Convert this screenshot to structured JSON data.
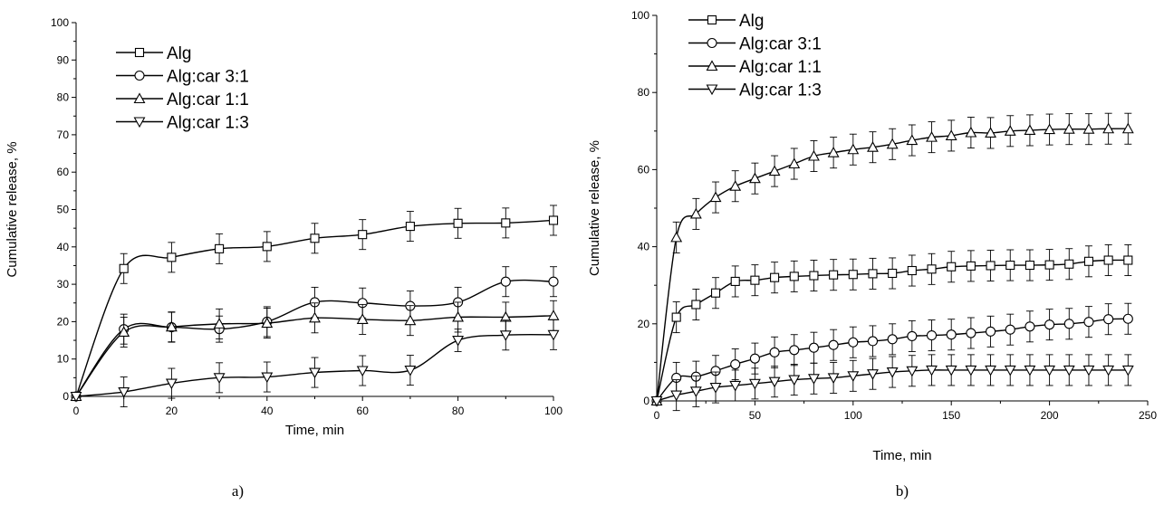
{
  "chart_data": [
    {
      "type": "line",
      "panel_label": "a)",
      "xlabel": "Time, min",
      "ylabel": "Cumulative release, %",
      "xlim": [
        0,
        100
      ],
      "ylim": [
        0,
        100
      ],
      "xticks": [
        0,
        20,
        40,
        60,
        80,
        100
      ],
      "yticks": [
        0,
        10,
        20,
        30,
        40,
        50,
        60,
        70,
        80,
        90,
        100
      ],
      "legend": "top-left",
      "series": [
        {
          "name": "Alg",
          "marker": "square",
          "x": [
            0,
            10,
            20,
            30,
            40,
            50,
            60,
            70,
            80,
            90,
            100
          ],
          "y": [
            0,
            34.2,
            37.2,
            39.5,
            40.1,
            42.3,
            43.3,
            45.5,
            46.3,
            46.4,
            47.1
          ],
          "err": [
            0,
            4,
            4,
            4,
            4,
            4,
            4,
            4,
            4,
            4,
            4
          ]
        },
        {
          "name": "Alg:car 3:1",
          "marker": "circle",
          "x": [
            0,
            10,
            20,
            30,
            40,
            50,
            60,
            70,
            80,
            90,
            100
          ],
          "y": [
            0,
            18.0,
            18.5,
            18.0,
            20.0,
            25.2,
            25.0,
            24.2,
            25.2,
            30.7,
            30.7
          ],
          "err": [
            0,
            4,
            4,
            3.5,
            4,
            4,
            4,
            4,
            4,
            4,
            4
          ]
        },
        {
          "name": "Alg:car 1:1",
          "marker": "triangle-up",
          "x": [
            0,
            10,
            20,
            30,
            40,
            50,
            60,
            70,
            80,
            90,
            100
          ],
          "y": [
            0,
            17.2,
            18.6,
            19.4,
            19.6,
            21.0,
            20.6,
            20.3,
            21.2,
            21.2,
            21.6
          ],
          "err": [
            0,
            4,
            4,
            4,
            4,
            4,
            4,
            4,
            4,
            4,
            4
          ]
        },
        {
          "name": "Alg:car 1:3",
          "marker": "triangle-down",
          "x": [
            0,
            10,
            20,
            30,
            40,
            50,
            60,
            70,
            80,
            90,
            100
          ],
          "y": [
            0,
            1.2,
            3.5,
            5.0,
            5.2,
            6.4,
            6.9,
            7.0,
            15.0,
            16.4,
            16.5
          ],
          "err": [
            0,
            4,
            4,
            4,
            4,
            4,
            4,
            4,
            3,
            4,
            4
          ]
        }
      ]
    },
    {
      "type": "line",
      "panel_label": "b)",
      "xlabel": "Time, min",
      "ylabel": "Cumulative release, %",
      "xlim": [
        0,
        250
      ],
      "ylim": [
        0,
        100
      ],
      "xticks": [
        0,
        50,
        100,
        150,
        200,
        250
      ],
      "yticks": [
        0,
        20,
        40,
        60,
        80,
        100
      ],
      "legend": "top-left",
      "series": [
        {
          "name": "Alg",
          "marker": "square",
          "x": [
            0,
            10,
            20,
            30,
            40,
            50,
            60,
            70,
            80,
            90,
            100,
            110,
            120,
            130,
            140,
            150,
            160,
            170,
            180,
            190,
            200,
            210,
            220,
            230,
            240
          ],
          "y": [
            0,
            21.7,
            25.0,
            28.0,
            31.0,
            31.3,
            32.0,
            32.3,
            32.5,
            32.7,
            32.8,
            33.0,
            33.1,
            33.8,
            34.2,
            34.8,
            35.0,
            35.1,
            35.2,
            35.2,
            35.3,
            35.5,
            36.2,
            36.5,
            36.5
          ],
          "err": [
            0,
            4,
            4,
            4,
            4,
            4,
            4,
            4,
            4,
            4,
            4,
            4,
            4,
            4,
            4,
            4,
            4,
            4,
            4,
            4,
            4,
            4,
            4,
            4,
            4
          ]
        },
        {
          "name": "Alg:car 3:1",
          "marker": "circle",
          "x": [
            0,
            10,
            20,
            30,
            40,
            50,
            60,
            70,
            80,
            90,
            100,
            110,
            120,
            130,
            140,
            150,
            160,
            170,
            180,
            190,
            200,
            210,
            220,
            230,
            240
          ],
          "y": [
            0,
            6.0,
            6.3,
            7.8,
            9.5,
            11.0,
            12.6,
            13.2,
            13.8,
            14.5,
            15.2,
            15.5,
            16.0,
            16.8,
            17.0,
            17.2,
            17.6,
            18.0,
            18.5,
            19.3,
            19.8,
            20.0,
            20.5,
            21.2,
            21.3
          ],
          "err": [
            0,
            4,
            4,
            4,
            4,
            4,
            4,
            4,
            4,
            4,
            4,
            4,
            4,
            4,
            4,
            4,
            4,
            4,
            4,
            4,
            4,
            4,
            4,
            4,
            4
          ]
        },
        {
          "name": "Alg:car 1:1",
          "marker": "triangle-up",
          "x": [
            0,
            10,
            20,
            30,
            40,
            50,
            60,
            70,
            80,
            90,
            100,
            110,
            120,
            130,
            140,
            150,
            160,
            170,
            180,
            190,
            200,
            210,
            220,
            230,
            240
          ],
          "y": [
            0,
            42.4,
            48.5,
            52.8,
            55.7,
            57.7,
            59.6,
            61.5,
            63.5,
            64.4,
            65.2,
            65.8,
            66.6,
            67.6,
            68.4,
            68.8,
            69.6,
            69.5,
            70.0,
            70.2,
            70.4,
            70.5,
            70.5,
            70.6,
            70.6
          ],
          "err": [
            0,
            4,
            4,
            4,
            4,
            4,
            4,
            4,
            4,
            4,
            4,
            4,
            4,
            4,
            4,
            4,
            4,
            4,
            4,
            4,
            4,
            4,
            4,
            4,
            4
          ]
        },
        {
          "name": "Alg:car 1:3",
          "marker": "triangle-down",
          "x": [
            0,
            10,
            20,
            30,
            40,
            50,
            60,
            70,
            80,
            90,
            100,
            110,
            120,
            130,
            140,
            150,
            160,
            170,
            180,
            190,
            200,
            210,
            220,
            230,
            240
          ],
          "y": [
            0,
            1.5,
            2.5,
            3.5,
            4.0,
            4.5,
            5.0,
            5.5,
            5.8,
            6.0,
            6.5,
            7.0,
            7.5,
            7.8,
            8.0,
            8.0,
            8.0,
            8.0,
            8.0,
            8.0,
            8.0,
            8.0,
            8.0,
            8.0,
            8.0
          ],
          "err": [
            0,
            4,
            4,
            4,
            4,
            4,
            4,
            4,
            4,
            4,
            4,
            4,
            4,
            4,
            4,
            4,
            4,
            4,
            4,
            4,
            4,
            4,
            4,
            4,
            4
          ]
        }
      ]
    }
  ]
}
